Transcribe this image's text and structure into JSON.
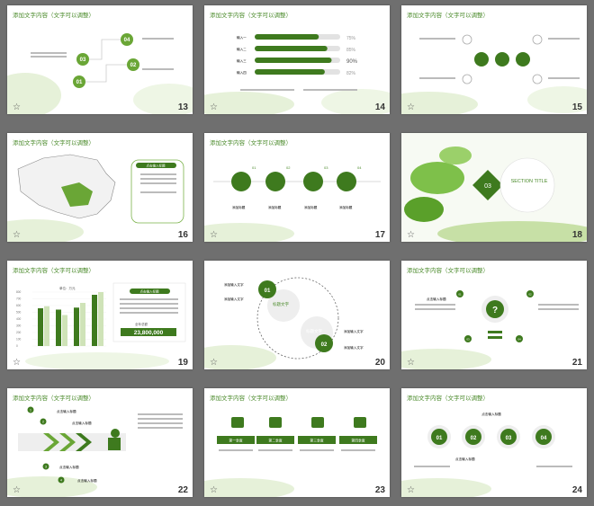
{
  "slide_title": "添加文字内容（文字可以调整）",
  "slides": [
    {
      "num": "13"
    },
    {
      "num": "14"
    },
    {
      "num": "15"
    },
    {
      "num": "16"
    },
    {
      "num": "17"
    },
    {
      "num": "18"
    },
    {
      "num": "19"
    },
    {
      "num": "20"
    },
    {
      "num": "21"
    },
    {
      "num": "22"
    },
    {
      "num": "23"
    },
    {
      "num": "24"
    }
  ],
  "s13": {
    "c1": "01",
    "c2": "02",
    "c3": "03",
    "c4": "04",
    "label": "点击输入标题"
  },
  "s14": {
    "labels": [
      "输入一",
      "输入二",
      "输入三",
      "输入四"
    ],
    "values": [
      "75%",
      "85%",
      "90%",
      "82%"
    ],
    "fills": [
      0.75,
      0.85,
      0.9,
      0.82
    ]
  },
  "s16": {
    "label": "点击输入标题"
  },
  "s17": {
    "nums": [
      "01",
      "02",
      "03",
      "04"
    ],
    "labels": [
      "添加标题",
      "添加标题",
      "添加标题",
      "添加标题"
    ]
  },
  "s18": {
    "num": "03",
    "title": "SECTION TITLE"
  },
  "s19": {
    "total_label": "全年总额",
    "total": "23,800,000",
    "header": "单位：万元",
    "label": "点击输入标题"
  },
  "s20": {
    "c1": "01",
    "c2": "02",
    "t1": "标题文字",
    "t2": "标题文字",
    "items": [
      "添加输入文字",
      "添加输入文字",
      "添加输入文字",
      "添加输入文字"
    ]
  },
  "s21": {
    "nums": [
      "01",
      "02",
      "03",
      "04"
    ],
    "label": "点击输入标题"
  },
  "s22": {
    "rows": [
      "点击输入标题",
      "点击输入标题",
      "点击输入标题",
      "点击输入标题"
    ],
    "nums": [
      "1",
      "2",
      "3",
      "4"
    ]
  },
  "s23": {
    "labels": [
      "第一季度",
      "第二季度",
      "第三季度",
      "第四季度"
    ]
  },
  "s24": {
    "nums": [
      "01",
      "02",
      "03",
      "04"
    ],
    "label": "点击输入标题"
  },
  "chart_data": {
    "type": "bar",
    "categories": [
      "1",
      "2",
      "3",
      "4"
    ],
    "series": [
      {
        "values": [
          560,
          540,
          570,
          760
        ]
      },
      {
        "values": [
          590,
          460,
          640,
          800
        ]
      }
    ],
    "ylim": [
      0,
      800
    ],
    "yticks": [
      "800",
      "700",
      "600",
      "500",
      "400",
      "300",
      "200",
      "100",
      "0"
    ]
  },
  "icons": {
    "star": "☆"
  }
}
